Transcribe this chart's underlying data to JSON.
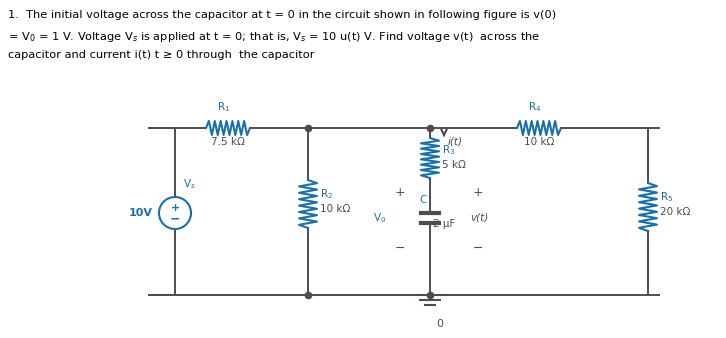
{
  "text_color_black": "#000000",
  "text_color_blue": "#1a6fad",
  "circuit_wire_color": "#4d4d4d",
  "component_color": "#1a6fad",
  "bg_color": "#ffffff",
  "voltage_source_val": "10V",
  "vs_label": "V$_s$",
  "R1_label": "R$_1$",
  "R1_val": "7.5 kΩ",
  "R2_label": "R$_2$",
  "R2_val": "10 kΩ",
  "R3_label": "R$_3$",
  "R3_val": "5 kΩ",
  "R4_label": "R$_4$",
  "R4_val": "10 kΩ",
  "R5_label": "R$_5$",
  "R5_val": "20 kΩ",
  "C_label": "C",
  "C_val": "2 μF",
  "V0_label": "V$_0$",
  "vt_label": "v(t)",
  "it_label": "i(t)",
  "ground_label": "0",
  "title_line1": "1.  The initial voltage across the capacitor at t = 0 in the circuit shown in following figure is v(0)",
  "title_line2": "= V$_0$ = 1 V. Voltage V$_s$ is applied at t = 0; that is, V$_s$ = 10 u(t) V. Find voltage v(t)  across the",
  "title_line3": "capacitor and current i(t) t ≥ 0 through  the capacitor"
}
